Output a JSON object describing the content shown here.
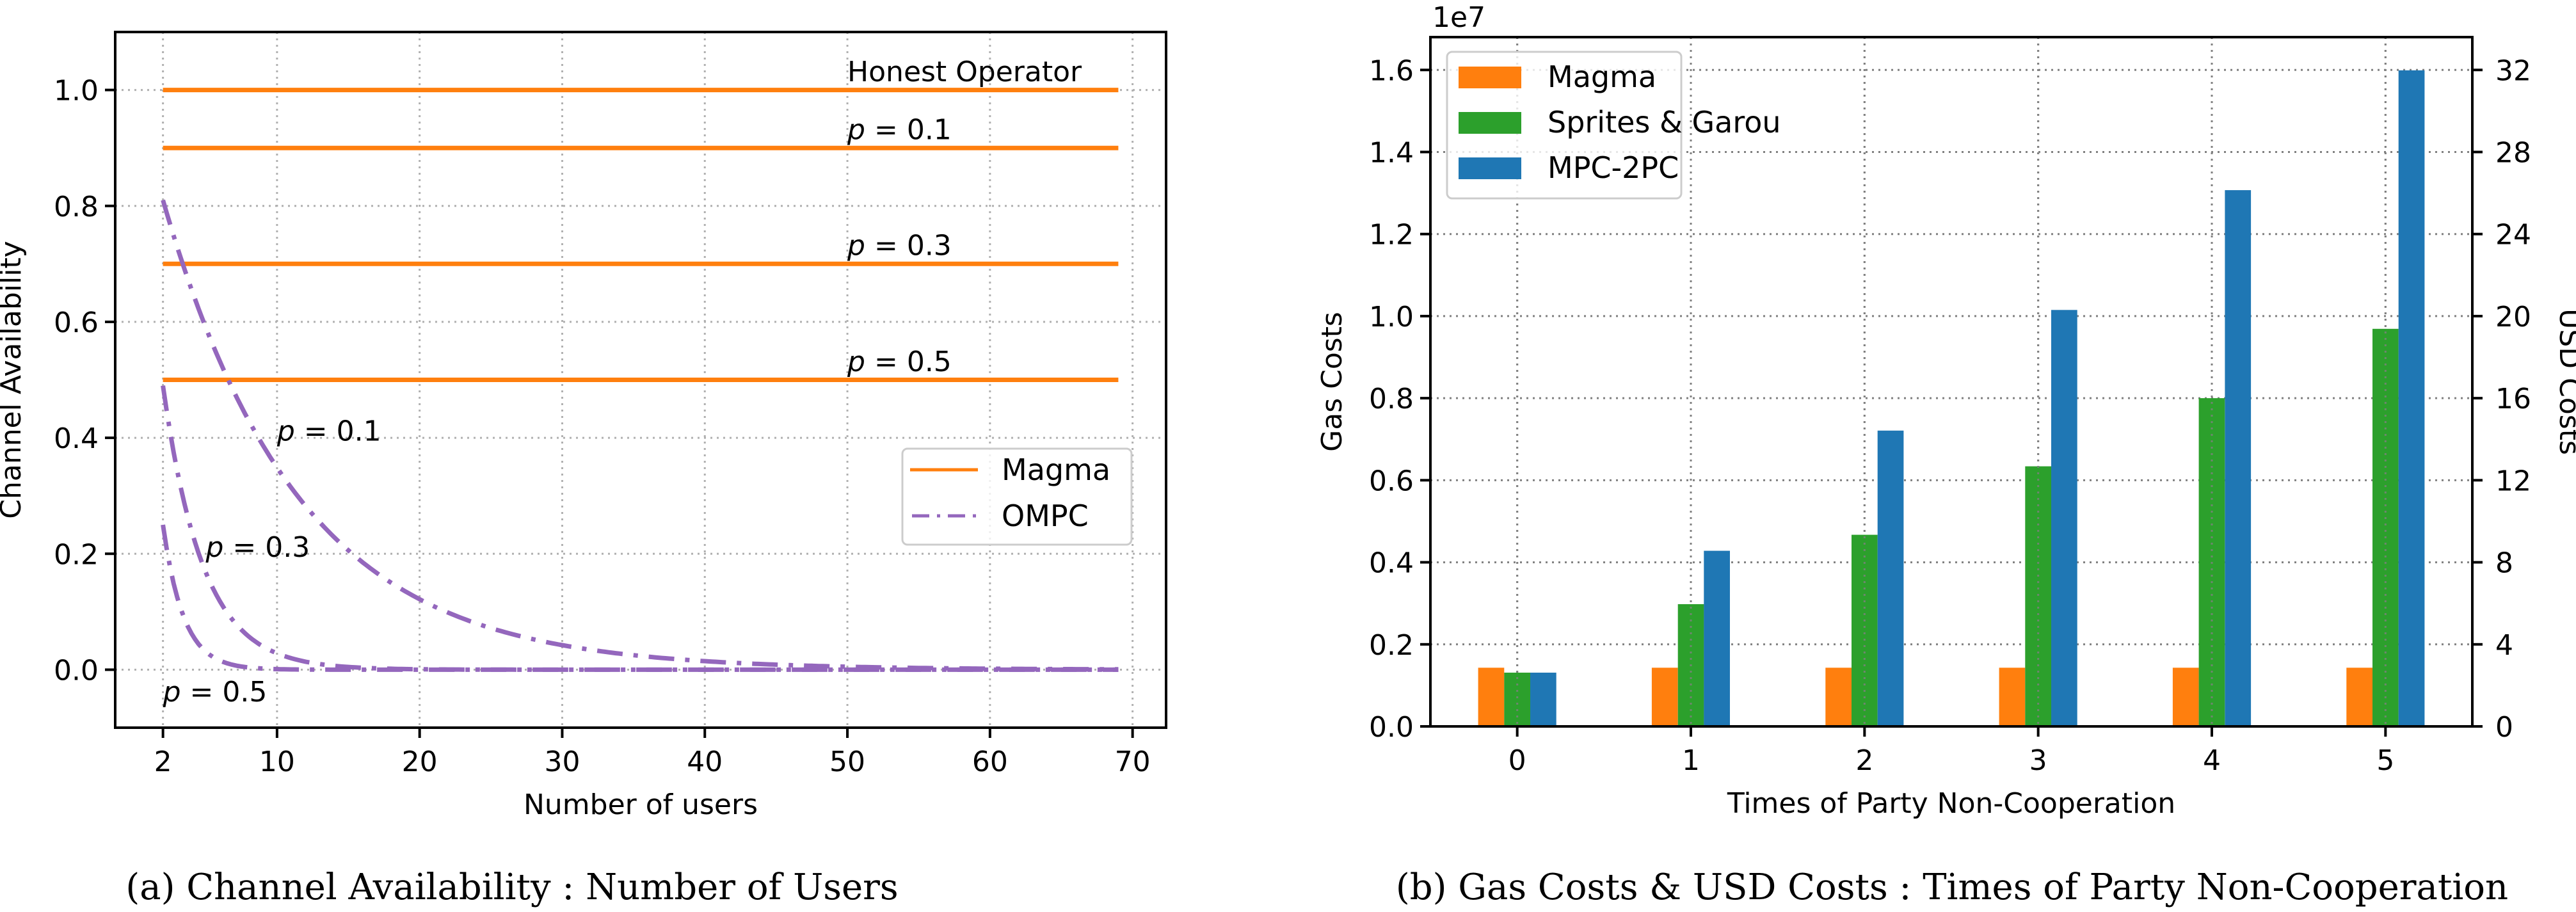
{
  "chart_data": [
    {
      "type": "line",
      "id": "availability",
      "caption": "(a) Channel Availability : Number of Users",
      "xlabel": "Number of users",
      "ylabel": "Channel Availability",
      "xlim": [
        -1.35,
        72.35
      ],
      "ylim": [
        -0.1,
        1.1
      ],
      "xticks": [
        2,
        10,
        20,
        30,
        40,
        50,
        60,
        70
      ],
      "yticks": [
        0.0,
        0.2,
        0.4,
        0.6,
        0.8,
        1.0
      ],
      "ytick_labels": [
        "0.0",
        "0.2",
        "0.4",
        "0.6",
        "0.8",
        "1.0"
      ],
      "grid": true,
      "legend": {
        "placement": "center-right",
        "entries": [
          {
            "label": "Magma",
            "color": "#ff7f0e",
            "style": "solid"
          },
          {
            "label": "OMPC",
            "color": "#9467bd",
            "style": "dashdot"
          }
        ]
      },
      "series": [
        {
          "name": "Magma",
          "label": "Honest Operator",
          "color": "#ff7f0e",
          "style": "solid",
          "x": [
            2,
            69
          ],
          "y": [
            1.0,
            1.0
          ]
        },
        {
          "name": "Magma",
          "label": "p = 0.1",
          "color": "#ff7f0e",
          "style": "solid",
          "x": [
            2,
            69
          ],
          "y": [
            0.9,
            0.9
          ]
        },
        {
          "name": "Magma",
          "label": "p = 0.3",
          "color": "#ff7f0e",
          "style": "solid",
          "x": [
            2,
            69
          ],
          "y": [
            0.7,
            0.7
          ]
        },
        {
          "name": "Magma",
          "label": "p = 0.5",
          "color": "#ff7f0e",
          "style": "solid",
          "x": [
            2,
            69
          ],
          "y": [
            0.5,
            0.5
          ]
        },
        {
          "name": "OMPC",
          "label": "p = 0.1",
          "color": "#9467bd",
          "style": "dashdot",
          "x_range": [
            2,
            69
          ],
          "formula": "(1-p)^n",
          "p": 0.1
        },
        {
          "name": "OMPC",
          "label": "p = 0.3",
          "color": "#9467bd",
          "style": "dashdot",
          "x_range": [
            2,
            69
          ],
          "formula": "(1-p)^n",
          "p": 0.3
        },
        {
          "name": "OMPC",
          "label": "p = 0.5",
          "color": "#9467bd",
          "style": "dashdot",
          "x_range": [
            2,
            69
          ],
          "formula": "(1-p)^n",
          "p": 0.5
        }
      ],
      "annotations": [
        {
          "text": "Honest Operator",
          "x": 50,
          "y": 1.015,
          "italic_p": false
        },
        {
          "text": "p = 0.1",
          "x": 50,
          "y": 0.915,
          "italic_p": true
        },
        {
          "text": "p = 0.3",
          "x": 50,
          "y": 0.715,
          "italic_p": true
        },
        {
          "text": "p = 0.5",
          "x": 50,
          "y": 0.515,
          "italic_p": true
        },
        {
          "text": "p = 0.1",
          "x": 10,
          "y": 0.395,
          "italic_p": true
        },
        {
          "text": "p = 0.3",
          "x": 5,
          "y": 0.195,
          "italic_p": true
        },
        {
          "text": "p = 0.5",
          "x": 2,
          "y": -0.055,
          "italic_p": true
        }
      ]
    },
    {
      "type": "bar",
      "id": "costs",
      "caption": "(b) Gas Costs & USD Costs : Times of Party Non-Cooperation",
      "xlabel": "Times of Party Non-Cooperation",
      "ylabel": "Gas Costs",
      "ylabel_right": "USD Costs",
      "offset_text": "1e7",
      "categories": [
        "0",
        "1",
        "2",
        "3",
        "4",
        "5"
      ],
      "xlim": [
        -0.5,
        5.5
      ],
      "ylim": [
        0,
        1.68
      ],
      "y_scale_multiplier": 10000000,
      "yticks": [
        0.0,
        0.2,
        0.4,
        0.6,
        0.8,
        1.0,
        1.2,
        1.4,
        1.6
      ],
      "ytick_labels": [
        "0.0",
        "0.2",
        "0.4",
        "0.6",
        "0.8",
        "1.0",
        "1.2",
        "1.4",
        "1.6"
      ],
      "ylim_right": [
        0,
        33.6
      ],
      "yticks_right": [
        0,
        4,
        8,
        12,
        16,
        20,
        24,
        28,
        32
      ],
      "ytick_labels_right": [
        "0",
        "4",
        "8",
        "12",
        "16",
        "20",
        "24",
        "28",
        "32"
      ],
      "grid": true,
      "bar_width": 0.15,
      "legend": {
        "placement": "top-left"
      },
      "series": [
        {
          "name": "Magma",
          "color": "#ff7f0e",
          "values": [
            0.143,
            0.143,
            0.143,
            0.143,
            0.143,
            0.143
          ]
        },
        {
          "name": "Sprites & Garou",
          "color": "#2ca02c",
          "values": [
            0.131,
            0.298,
            0.467,
            0.634,
            0.8,
            0.969
          ]
        },
        {
          "name": "MPC-2PC",
          "color": "#1f77b4",
          "values": [
            0.131,
            0.428,
            0.721,
            1.015,
            1.307,
            1.599
          ]
        }
      ]
    }
  ]
}
